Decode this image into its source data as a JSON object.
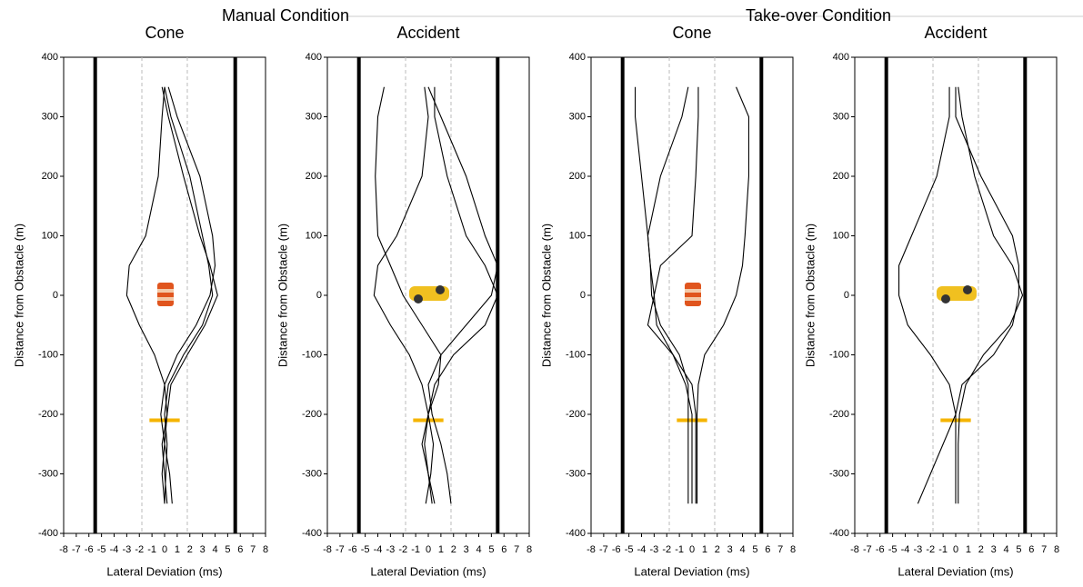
{
  "groups": [
    "Manual Condition",
    "Take-over Condition"
  ],
  "chart_data": [
    {
      "type": "line",
      "title": "Cone",
      "xlabel": "Lateral Deviation (ms)",
      "ylabel": "Distance from Obstacle (m)",
      "xlim": [
        -8,
        8
      ],
      "ylim": [
        -400,
        400
      ],
      "xticks": [
        -8,
        -7,
        -6,
        -5,
        -4,
        -3,
        -2,
        -1,
        0,
        1,
        2,
        3,
        4,
        5,
        6,
        7,
        8
      ],
      "yticks": [
        -400,
        -300,
        -200,
        -100,
        0,
        100,
        200,
        300,
        400
      ],
      "lane_edges": [
        -5.5,
        5.6
      ],
      "lane_guides": [
        -1.8,
        1.8
      ],
      "trigger": {
        "y": -210,
        "x": [
          -1.2,
          1.2
        ],
        "color": "#f5b400"
      },
      "series": [
        {
          "color": "#000000",
          "x": [
            0,
            0.5,
            2,
            3,
            3.5,
            3.8,
            3,
            1.5,
            0.3,
            0,
            0.2,
            0.1,
            0
          ],
          "values": [
            350,
            300,
            200,
            100,
            50,
            0,
            -50,
            -100,
            -150,
            -200,
            -250,
            -300,
            -350
          ]
        },
        {
          "color": "#000000",
          "x": [
            0.3,
            1,
            2.8,
            3.8,
            4,
            3.6,
            2.5,
            1,
            0,
            -0.3,
            0,
            0.4,
            0.6
          ],
          "values": [
            350,
            300,
            200,
            100,
            50,
            0,
            -50,
            -100,
            -150,
            -200,
            -250,
            -300,
            -350
          ]
        },
        {
          "color": "#000000",
          "x": [
            -0.2,
            0.3,
            1.5,
            2.8,
            3.6,
            4.2,
            3.2,
            1.8,
            0.5,
            0.2,
            -0.2,
            0,
            0.2
          ],
          "values": [
            350,
            300,
            200,
            100,
            50,
            0,
            -50,
            -100,
            -150,
            -200,
            -250,
            -300,
            -350
          ]
        },
        {
          "color": "#000000",
          "x": [
            0,
            -0.2,
            -0.5,
            -1.5,
            -2.8,
            -3,
            -2,
            -0.8,
            0,
            0.2,
            0,
            -0.2,
            0
          ],
          "values": [
            350,
            300,
            200,
            100,
            50,
            0,
            -50,
            -100,
            -150,
            -200,
            -250,
            -300,
            -350
          ]
        }
      ]
    },
    {
      "type": "line",
      "title": "Accident",
      "xlabel": "Lateral Deviation (ms)",
      "ylabel": "Distance from Obstacle (m)",
      "xlim": [
        -8,
        8
      ],
      "ylim": [
        -400,
        400
      ],
      "xticks": [
        -8,
        -7,
        -6,
        -5,
        -4,
        -3,
        -2,
        -1,
        0,
        1,
        2,
        3,
        4,
        5,
        6,
        7,
        8
      ],
      "yticks": [
        -400,
        -300,
        -200,
        -100,
        0,
        100,
        200,
        300,
        400
      ],
      "lane_edges": [
        -5.5,
        5.5
      ],
      "lane_guides": [
        -1.8,
        1.8
      ],
      "trigger": {
        "y": -210,
        "x": [
          -1.2,
          1.2
        ],
        "color": "#f5b400"
      },
      "series": [
        {
          "color": "#000000",
          "x": [
            -3.5,
            -4,
            -4.2,
            -4,
            -3,
            -2,
            -0.5,
            1,
            0.8,
            0,
            -0.5,
            0,
            0.5
          ],
          "values": [
            350,
            300,
            200,
            100,
            50,
            0,
            -50,
            -100,
            -150,
            -200,
            -250,
            -300,
            -350
          ]
        },
        {
          "color": "#000000",
          "x": [
            0,
            1,
            3,
            4.5,
            5.5,
            5,
            3,
            1,
            0,
            0.3,
            1,
            1.5,
            1.8
          ],
          "values": [
            350,
            300,
            200,
            100,
            50,
            0,
            -50,
            -100,
            -150,
            -200,
            -250,
            -300,
            -350
          ]
        },
        {
          "color": "#000000",
          "x": [
            0.5,
            0.5,
            1.5,
            3,
            4.5,
            5.5,
            4.5,
            2,
            0.5,
            0,
            -0.3,
            0,
            0.3
          ],
          "values": [
            350,
            300,
            200,
            100,
            50,
            0,
            -50,
            -100,
            -150,
            -200,
            -250,
            -300,
            -350
          ]
        },
        {
          "color": "#000000",
          "x": [
            -0.3,
            0,
            -0.5,
            -2.5,
            -4,
            -4.3,
            -3,
            -1.5,
            -0.5,
            0,
            0.4,
            0.2,
            -0.2
          ],
          "values": [
            350,
            300,
            200,
            100,
            50,
            0,
            -50,
            -100,
            -150,
            -200,
            -250,
            -300,
            -350
          ]
        }
      ]
    },
    {
      "type": "line",
      "title": "Cone",
      "xlabel": "Lateral Deviation (ms)",
      "ylabel": "Distance from Obstacle (m)",
      "xlim": [
        -8,
        8
      ],
      "ylim": [
        -400,
        400
      ],
      "xticks": [
        -8,
        -7,
        -6,
        -5,
        -4,
        -3,
        -2,
        -1,
        0,
        1,
        2,
        3,
        4,
        5,
        6,
        7,
        8
      ],
      "yticks": [
        -400,
        -300,
        -200,
        -100,
        0,
        100,
        200,
        300,
        400
      ],
      "lane_edges": [
        -5.5,
        5.5
      ],
      "lane_guides": [
        -1.8,
        1.8
      ],
      "trigger": {
        "y": -210,
        "x": [
          -1.2,
          1.2
        ],
        "color": "#f5b400"
      },
      "series": [
        {
          "color": "#000000",
          "x": [
            -4.5,
            -4.5,
            -4,
            -3.5,
            -3.3,
            -3,
            -2.8,
            -1.5,
            -0.5,
            0,
            0,
            0,
            0
          ],
          "values": [
            350,
            300,
            200,
            100,
            50,
            0,
            -50,
            -100,
            -150,
            -200,
            -250,
            -300,
            -350
          ]
        },
        {
          "color": "#000000",
          "x": [
            0.5,
            0.5,
            0.3,
            0,
            -2.5,
            -3,
            -3.5,
            -1.5,
            0,
            0.3,
            0.3,
            0.3,
            0.3
          ],
          "values": [
            350,
            300,
            200,
            100,
            50,
            0,
            -50,
            -100,
            -150,
            -200,
            -250,
            -300,
            -350
          ]
        },
        {
          "color": "#000000",
          "x": [
            3.5,
            4.5,
            4.5,
            4.2,
            4,
            3.5,
            2.5,
            1,
            0.5,
            0.4,
            0.4,
            0.4,
            0.4
          ],
          "values": [
            350,
            300,
            200,
            100,
            50,
            0,
            -50,
            -100,
            -150,
            -200,
            -250,
            -300,
            -350
          ]
        },
        {
          "color": "#000000",
          "x": [
            -0.3,
            -0.8,
            -2.5,
            -3.5,
            -3.3,
            -3.2,
            -2.5,
            -1,
            -0.3,
            -0.3,
            -0.3,
            -0.3,
            -0.3
          ],
          "values": [
            350,
            300,
            200,
            100,
            50,
            0,
            -50,
            -100,
            -150,
            -200,
            -250,
            -300,
            -350
          ]
        }
      ]
    },
    {
      "type": "line",
      "title": "Accident",
      "xlabel": "Lateral Deviation (ms)",
      "ylabel": "Distance from Obstacle (m)",
      "xlim": [
        -8,
        8
      ],
      "ylim": [
        -400,
        400
      ],
      "xticks": [
        -8,
        -7,
        -6,
        -5,
        -4,
        -3,
        -2,
        -1,
        0,
        1,
        2,
        3,
        4,
        5,
        6,
        7,
        8
      ],
      "yticks": [
        -400,
        -300,
        -200,
        -100,
        0,
        100,
        200,
        300,
        400
      ],
      "lane_edges": [
        -5.5,
        5.5
      ],
      "lane_guides": [
        -1.8,
        1.8
      ],
      "trigger": {
        "y": -210,
        "x": [
          -1.2,
          1.2
        ],
        "color": "#f5b400"
      },
      "series": [
        {
          "color": "#000000",
          "x": [
            -0.5,
            -0.5,
            -1.5,
            -3.5,
            -4.5,
            -4.5,
            -3.8,
            -2,
            -0.5,
            0,
            0,
            0,
            0
          ],
          "values": [
            350,
            300,
            200,
            100,
            50,
            0,
            -50,
            -100,
            -150,
            -200,
            -250,
            -300,
            -350
          ]
        },
        {
          "color": "#000000",
          "x": [
            0,
            0,
            2,
            4.5,
            5,
            5,
            4.5,
            3,
            0.5,
            0,
            -1,
            -2,
            -3
          ],
          "values": [
            350,
            300,
            200,
            100,
            50,
            0,
            -50,
            -100,
            -150,
            -200,
            -250,
            -300,
            -350
          ]
        },
        {
          "color": "#000000",
          "x": [
            0.2,
            0.5,
            1.5,
            3,
            4.5,
            5.3,
            4.3,
            2.2,
            0.8,
            0.3,
            0.2,
            0.2,
            0.2
          ],
          "values": [
            350,
            300,
            200,
            100,
            50,
            0,
            -50,
            -100,
            -150,
            -200,
            -250,
            -300,
            -350
          ]
        }
      ]
    }
  ]
}
